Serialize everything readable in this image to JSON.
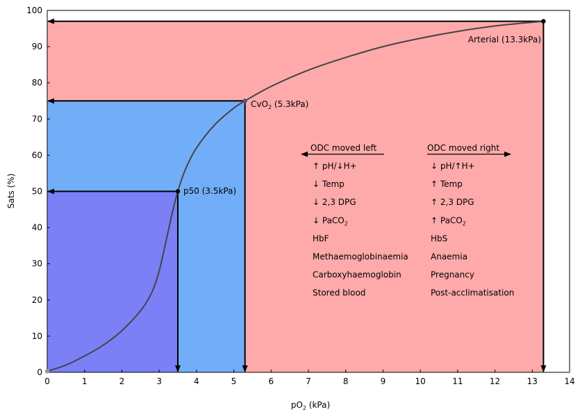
{
  "chart_data": {
    "type": "line",
    "xlabel": "pO",
    "xlabel_sub": "2",
    "xlabel_unit": " (kPa)",
    "ylabel": "Sats (%)",
    "xlim": [
      0,
      14
    ],
    "ylim": [
      0,
      100
    ],
    "x_ticks": [
      0,
      1,
      2,
      3,
      4,
      5,
      6,
      7,
      8,
      9,
      10,
      11,
      12,
      13,
      14
    ],
    "y_ticks": [
      0,
      10,
      20,
      30,
      40,
      50,
      60,
      70,
      80,
      90,
      100
    ],
    "x_tick_labels": [
      "0",
      "1",
      "2",
      "3",
      "4",
      "5",
      "6",
      "7",
      "8",
      "9",
      "10",
      "11",
      "12",
      "13",
      "14"
    ],
    "y_tick_labels": [
      "0",
      "10",
      "20",
      "30",
      "40",
      "50",
      "60",
      "70",
      "80",
      "90",
      "100"
    ],
    "regions": [
      {
        "x_max": 13.3,
        "y_max": 97,
        "color": "#ffaaaa"
      },
      {
        "x_max": 5.3,
        "y_max": 75,
        "color": "#72aef8"
      },
      {
        "x_max": 3.5,
        "y_max": 50,
        "color": "#7b80f6"
      }
    ],
    "curve": {
      "color": "#444444",
      "points": [
        [
          0,
          0.3
        ],
        [
          0.5,
          2
        ],
        [
          1,
          4.5
        ],
        [
          1.5,
          7.5
        ],
        [
          2,
          11.5
        ],
        [
          2.5,
          17
        ],
        [
          2.8,
          22
        ],
        [
          3.0,
          28
        ],
        [
          3.2,
          37
        ],
        [
          3.35,
          44
        ],
        [
          3.5,
          50
        ],
        [
          3.7,
          56
        ],
        [
          4.0,
          62
        ],
        [
          4.5,
          68.5
        ],
        [
          5.0,
          73
        ],
        [
          5.3,
          75
        ],
        [
          6.0,
          79
        ],
        [
          7.0,
          83.5
        ],
        [
          8.0,
          87
        ],
        [
          9.0,
          90
        ],
        [
          10.0,
          92.3
        ],
        [
          11.0,
          94.2
        ],
        [
          12.0,
          95.7
        ],
        [
          13.3,
          97
        ]
      ]
    },
    "points": [
      {
        "x": 0,
        "y": 0.3,
        "color": "#999999"
      },
      {
        "x": 3.5,
        "y": 50,
        "color": "#000000"
      },
      {
        "x": 5.3,
        "y": 75,
        "color": "#555577"
      },
      {
        "x": 13.3,
        "y": 97,
        "color": "#000000"
      }
    ],
    "point_labels": {
      "p50": "p50 (3.5kPa)",
      "cvo2_pre": "CvO",
      "cvo2_sub": "2",
      "cvo2_post": " (5.3kPa)",
      "arterial": "Arterial (13.3kPa)"
    },
    "left_shift": {
      "title": "ODC moved left",
      "items": [
        {
          "text": "↑ pH/↓H+"
        },
        {
          "text": "↓ Temp"
        },
        {
          "text": "↓ 2,3 DPG"
        },
        {
          "text": "↓ PaCO",
          "sub": "2"
        },
        {
          "text": "HbF"
        },
        {
          "text": "Methaemoglobinaemia"
        },
        {
          "text": "Carboxyhaemoglobin"
        },
        {
          "text": "Stored blood"
        }
      ]
    },
    "right_shift": {
      "title": "ODC moved right",
      "items": [
        {
          "text": "↓ pH/↑H+"
        },
        {
          "text": "↑ Temp"
        },
        {
          "text": "↑ 2,3 DPG"
        },
        {
          "text": "↑ PaCO",
          "sub": "2"
        },
        {
          "text": "HbS"
        },
        {
          "text": "Anaemia"
        },
        {
          "text": "Pregnancy"
        },
        {
          "text": "Post-acclimatisation"
        }
      ]
    }
  }
}
